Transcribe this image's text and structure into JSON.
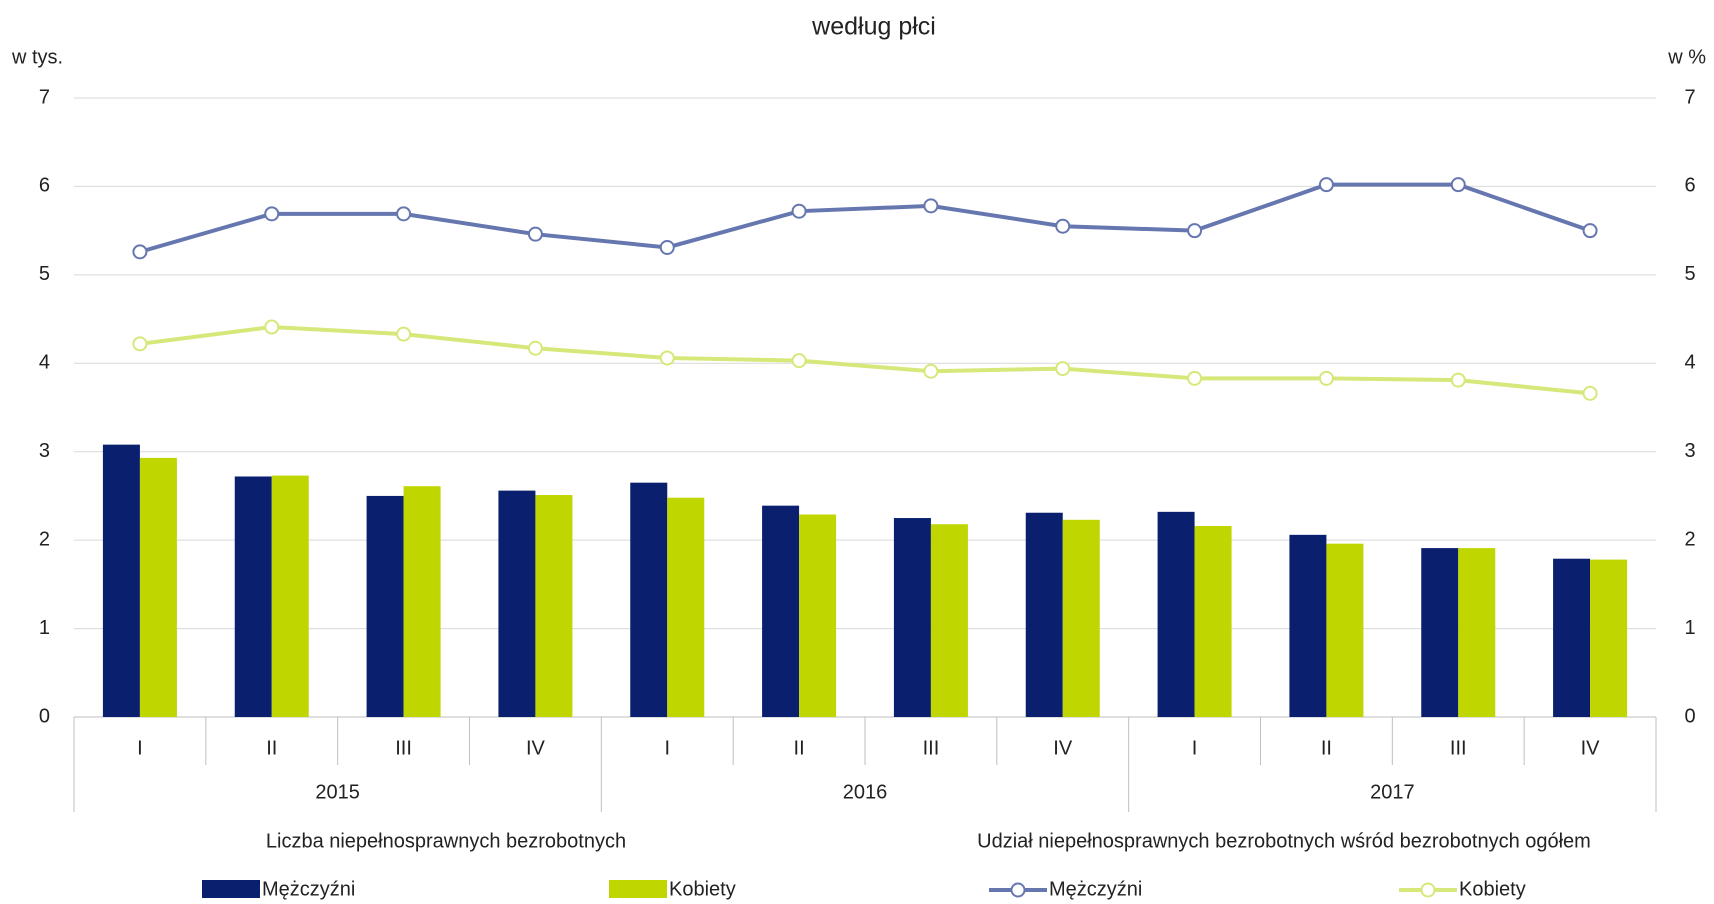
{
  "chart_data": {
    "type": "bar-line",
    "title": "według płci",
    "ylabel": "w tys.",
    "y2label": "w %",
    "categories": [
      "I",
      "II",
      "III",
      "IV",
      "I",
      "II",
      "III",
      "IV",
      "I",
      "II",
      "III",
      "IV"
    ],
    "groups": [
      "2015",
      "2016",
      "2017"
    ],
    "section_labels": [
      "Liczba niepełnosprawnych bezrobotnych",
      "Udział niepełnosprawnych bezrobotnych wśród bezrobotnych ogółem"
    ],
    "ylim": [
      0,
      7
    ],
    "yticks": [
      0,
      1,
      2,
      3,
      4,
      5,
      6,
      7
    ],
    "y2lim": [
      0,
      7
    ],
    "y2ticks": [
      0,
      1,
      2,
      3,
      4,
      5,
      6,
      7
    ],
    "grid": true,
    "series": [
      {
        "name": "Mężczyźni",
        "type": "bar",
        "axis": "y",
        "color": "#0b1f6f",
        "values": [
          3.08,
          2.72,
          2.5,
          2.56,
          2.65,
          2.39,
          2.25,
          2.31,
          2.32,
          2.06,
          1.91,
          1.79
        ]
      },
      {
        "name": "Kobiety",
        "type": "bar",
        "axis": "y",
        "color": "#bfd600",
        "values": [
          2.93,
          2.73,
          2.61,
          2.51,
          2.48,
          2.29,
          2.18,
          2.23,
          2.16,
          1.96,
          1.91,
          1.78
        ]
      },
      {
        "name": "Mężczyźni",
        "type": "line",
        "axis": "y2",
        "color": "#6677b0",
        "values": [
          5.26,
          5.69,
          5.69,
          5.46,
          5.31,
          5.72,
          5.78,
          5.55,
          5.5,
          6.02,
          6.02,
          5.5
        ]
      },
      {
        "name": "Kobiety",
        "type": "line",
        "axis": "y2",
        "color": "#d8e77a",
        "values": [
          4.22,
          4.41,
          4.33,
          4.17,
          4.06,
          4.03,
          3.91,
          3.94,
          3.83,
          3.83,
          3.81,
          3.66
        ]
      }
    ]
  }
}
